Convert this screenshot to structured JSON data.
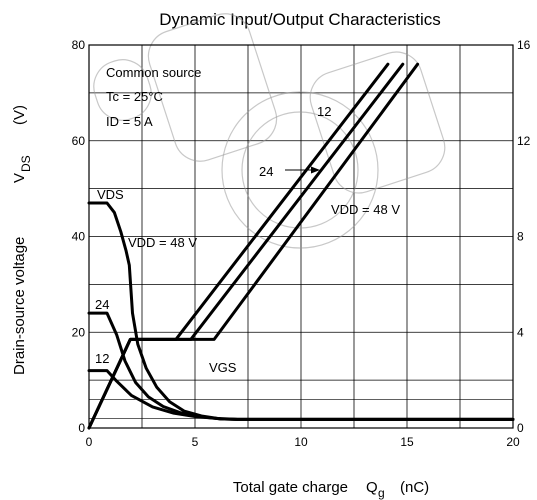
{
  "chart_data": {
    "type": "line",
    "title": "Dynamic Input/Output Characteristics",
    "xlabel": "Total gate charge",
    "xlabel_symbol": "Q",
    "xlabel_symbol_sub": "g",
    "xlabel_unit": "(nC)",
    "ylabel": "Drain-source voltage",
    "ylabel_symbol": "V",
    "ylabel_symbol_sub": "DS",
    "ylabel_unit": "(V)",
    "xlim": [
      0,
      20
    ],
    "ylim": [
      0,
      80
    ],
    "y2lim": [
      0,
      16
    ],
    "x_ticks": [
      0,
      5,
      10,
      15,
      20
    ],
    "y_ticks": [
      0,
      20,
      40,
      60,
      80
    ],
    "y2_ticks": [
      0,
      4,
      8,
      12,
      16
    ],
    "x_tick_labels": [
      "0",
      "5",
      "10",
      "15",
      "20"
    ],
    "y_tick_labels": [
      "0",
      "20",
      "40",
      "60",
      "80"
    ],
    "y2_tick_labels": [
      "0",
      "4",
      "8",
      "12",
      "16"
    ],
    "grid": true,
    "conditions": [
      "Common source",
      "Tc = 25°C",
      "ID = 5 A"
    ],
    "annotations": {
      "vds": "VDS",
      "vgs": "VGS",
      "vdd48_left": "VDD = 48 V",
      "vdd48_right": "VDD = 48 V",
      "v24_left": "24",
      "v12_left": "12",
      "v24_right": "24",
      "v12_right": "12"
    },
    "series": [
      {
        "name": "VDS VDD = 48 V",
        "axis": "left",
        "x": [
          0,
          0.85,
          1.2,
          1.5,
          1.75,
          1.9,
          2.05,
          2.3,
          2.7,
          3.2,
          3.8,
          4.5,
          5.3,
          6.2,
          7,
          20
        ],
        "y": [
          47,
          47,
          45,
          41,
          37,
          34,
          24,
          17.5,
          12.5,
          8.5,
          5.5,
          3.5,
          2.5,
          1.9,
          1.8,
          1.8
        ]
      },
      {
        "name": "VDS VDD = 24 V",
        "axis": "left",
        "x": [
          0,
          0.85,
          1.3,
          1.7,
          2.2,
          2.8,
          3.5,
          4.3,
          5.2,
          6.2,
          7,
          20
        ],
        "y": [
          24,
          24,
          19.5,
          14,
          9.5,
          6.5,
          4.5,
          3.2,
          2.4,
          1.9,
          1.8,
          1.8
        ]
      },
      {
        "name": "VDS VDD = 12 V",
        "axis": "left",
        "x": [
          0,
          0.85,
          1.3,
          2,
          3,
          4,
          5,
          6,
          7,
          20
        ],
        "y": [
          12,
          12,
          9.8,
          6.8,
          4.4,
          3.1,
          2.4,
          2,
          1.8,
          1.8
        ]
      },
      {
        "name": "VGS VDD = 12 V",
        "axis": "right",
        "x": [
          0,
          1.95,
          4.1,
          14.1
        ],
        "y": [
          0,
          3.7,
          3.7,
          15.2
        ]
      },
      {
        "name": "VGS VDD = 24 V",
        "axis": "right",
        "x": [
          0,
          1.95,
          4.8,
          14.8
        ],
        "y": [
          0,
          3.7,
          3.7,
          15.2
        ]
      },
      {
        "name": "VGS VDD = 48 V",
        "axis": "right",
        "x": [
          0,
          1.95,
          5.9,
          15.5
        ],
        "y": [
          0,
          3.7,
          3.7,
          15.2
        ]
      }
    ]
  }
}
